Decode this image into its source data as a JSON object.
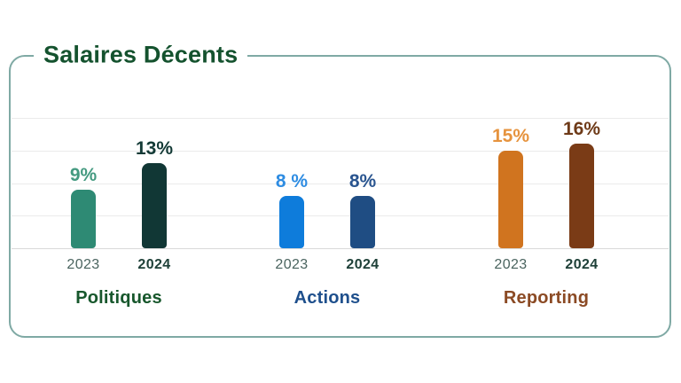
{
  "header": {
    "title": "Salaires Décents",
    "title_color": "#14522e"
  },
  "panel": {
    "border_color": "#7fa9a4"
  },
  "axis": {
    "grid_color": "#ebebeb",
    "baseline_color": "#d9d9d9",
    "unit": "%"
  },
  "chart_data": {
    "type": "bar",
    "title": "Salaires Décents",
    "categories": [
      "Politiques",
      "Actions",
      "Reporting"
    ],
    "series": [
      {
        "name": "2023",
        "values": [
          9,
          8,
          15
        ]
      },
      {
        "name": "2024",
        "values": [
          13,
          8,
          16
        ]
      }
    ],
    "value_labels": {
      "2023": [
        "9%",
        "8 %",
        "15%"
      ],
      "2024": [
        "13%",
        "8%",
        "16%"
      ]
    },
    "xlabel": "",
    "ylabel": "",
    "unit": "%",
    "ylim": [
      0,
      20
    ],
    "gridline_values": [
      5,
      10,
      15,
      20
    ],
    "grid": "on",
    "legend_position": "none"
  },
  "groups": [
    {
      "label": "Politiques",
      "label_color": "#17572c",
      "bars": [
        {
          "year": "2023",
          "value": 9,
          "value_text": "9%",
          "bar_color": "#2e8a74",
          "value_color": "#449a80"
        },
        {
          "year": "2024",
          "value": 13,
          "value_text": "13%",
          "bar_color": "#113735",
          "value_color": "#133a36"
        }
      ]
    },
    {
      "label": "Actions",
      "label_color": "#1e4f8c",
      "bars": [
        {
          "year": "2023",
          "value": 8,
          "value_text": "8 %",
          "bar_color": "#0e7cdb",
          "value_color": "#2e8ce2"
        },
        {
          "year": "2024",
          "value": 8,
          "value_text": "8%",
          "bar_color": "#1f4d83",
          "value_color": "#29548f"
        }
      ]
    },
    {
      "label": "Reporting",
      "label_color": "#8b4a24",
      "bars": [
        {
          "year": "2023",
          "value": 15,
          "value_text": "15%",
          "bar_color": "#d0741f",
          "value_color": "#e6933e"
        },
        {
          "year": "2024",
          "value": 16,
          "value_text": "16%",
          "bar_color": "#7a3b16",
          "value_color": "#6e3a18"
        }
      ]
    }
  ],
  "year_label_styles": {
    "2023": {
      "color": "#4a645f",
      "bold": false
    },
    "2024": {
      "color": "#1e4038",
      "bold": true
    }
  }
}
